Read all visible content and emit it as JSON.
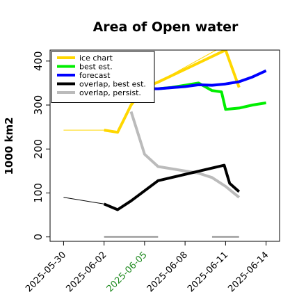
{
  "chart_data": {
    "type": "line",
    "title": "Area of Open water",
    "xlabel": "",
    "ylabel": "1000 km2",
    "ylim": [
      -10,
      425
    ],
    "xlim": [
      "2025-05-29",
      "2025-06-15"
    ],
    "grid": false,
    "legend_position": "top-left",
    "yticks": [
      0,
      100,
      200,
      300,
      400
    ],
    "xticks": [
      {
        "date": "2025-05-30",
        "label": "2025-05-30",
        "color": "#000000"
      },
      {
        "date": "2025-06-02",
        "label": "2025-06-02",
        "color": "#000000"
      },
      {
        "date": "2025-06-05",
        "label": "2025-06-05",
        "color": "#228b22"
      },
      {
        "date": "2025-06-08",
        "label": "2025-06-08",
        "color": "#000000"
      },
      {
        "date": "2025-06-11",
        "label": "2025-06-11",
        "color": "#000000"
      },
      {
        "date": "2025-06-14",
        "label": "2025-06-14",
        "color": "#000000"
      }
    ],
    "series": [
      {
        "name": "ice chart",
        "color": "#ffd700",
        "width": 4,
        "points": [
          [
            "2025-06-02",
            243
          ],
          [
            "2025-06-03",
            238
          ],
          [
            "2025-06-04",
            300
          ],
          [
            "2025-06-05",
            340
          ],
          [
            "2025-06-06",
            352
          ],
          [
            "2025-06-11",
            425
          ],
          [
            "2025-06-12",
            340
          ]
        ]
      },
      {
        "name": "best est.",
        "color": "#00ee00",
        "width": 4,
        "points": [
          [
            "2025-06-06",
            337
          ],
          [
            "2025-06-07",
            340
          ],
          [
            "2025-06-08",
            345
          ],
          [
            "2025-06-09",
            350
          ],
          [
            "2025-06-10",
            333
          ],
          [
            "2025-06-10.7",
            330
          ],
          [
            "2025-06-11",
            290
          ],
          [
            "2025-06-12",
            293
          ],
          [
            "2025-06-13",
            300
          ],
          [
            "2025-06-14",
            305
          ]
        ]
      },
      {
        "name": "forecast",
        "color": "#0000ff",
        "width": 4,
        "points": [
          [
            "2025-06-05",
            337
          ],
          [
            "2025-06-06",
            337
          ],
          [
            "2025-06-08",
            342
          ],
          [
            "2025-06-09",
            346
          ],
          [
            "2025-06-10",
            345
          ],
          [
            "2025-06-11",
            348
          ],
          [
            "2025-06-12",
            353
          ],
          [
            "2025-06-13",
            364
          ],
          [
            "2025-06-14",
            378
          ]
        ]
      },
      {
        "name": "overlap, best est.",
        "color": "#000000",
        "width": 4,
        "points": [
          [
            "2025-06-02",
            75
          ],
          [
            "2025-06-03",
            62
          ],
          [
            "2025-06-04",
            82
          ],
          [
            "2025-06-05",
            105
          ],
          [
            "2025-06-06",
            128
          ],
          [
            "2025-06-10.9",
            163
          ],
          [
            "2025-06-11.3",
            122
          ],
          [
            "2025-06-12",
            103
          ]
        ]
      },
      {
        "name": "overlap, persist.",
        "color": "#bbbbbb",
        "width": 4,
        "points": [
          [
            "2025-06-04",
            285
          ],
          [
            "2025-06-05",
            188
          ],
          [
            "2025-06-06",
            160
          ],
          [
            "2025-06-09",
            145
          ],
          [
            "2025-06-10",
            135
          ],
          [
            "2025-06-11",
            115
          ],
          [
            "2025-06-12",
            90
          ]
        ]
      }
    ],
    "thin_lines": [
      {
        "of": "ice chart",
        "color": "#ffd700",
        "points": [
          [
            "2025-05-30",
            243
          ],
          [
            "2025-06-02",
            243
          ]
        ]
      },
      {
        "of": "ice chart",
        "color": "#ffd700",
        "points": [
          [
            "2025-06-06",
            352
          ],
          [
            "2025-06-10.3",
            425
          ]
        ]
      },
      {
        "of": "overlap, best est.",
        "color": "#000000",
        "points": [
          [
            "2025-05-30",
            90
          ],
          [
            "2025-06-02",
            75
          ]
        ]
      },
      {
        "of": "overlap, best est.",
        "color": "#000000",
        "points": [
          [
            "2025-06-06",
            128
          ],
          [
            "2025-06-10.9",
            163
          ]
        ]
      }
    ],
    "baseline_segments": [
      {
        "color": "#888888",
        "value": 0,
        "from": "2025-06-02",
        "to": "2025-06-06"
      },
      {
        "color": "#888888",
        "value": 0,
        "from": "2025-06-10",
        "to": "2025-06-12"
      }
    ]
  }
}
